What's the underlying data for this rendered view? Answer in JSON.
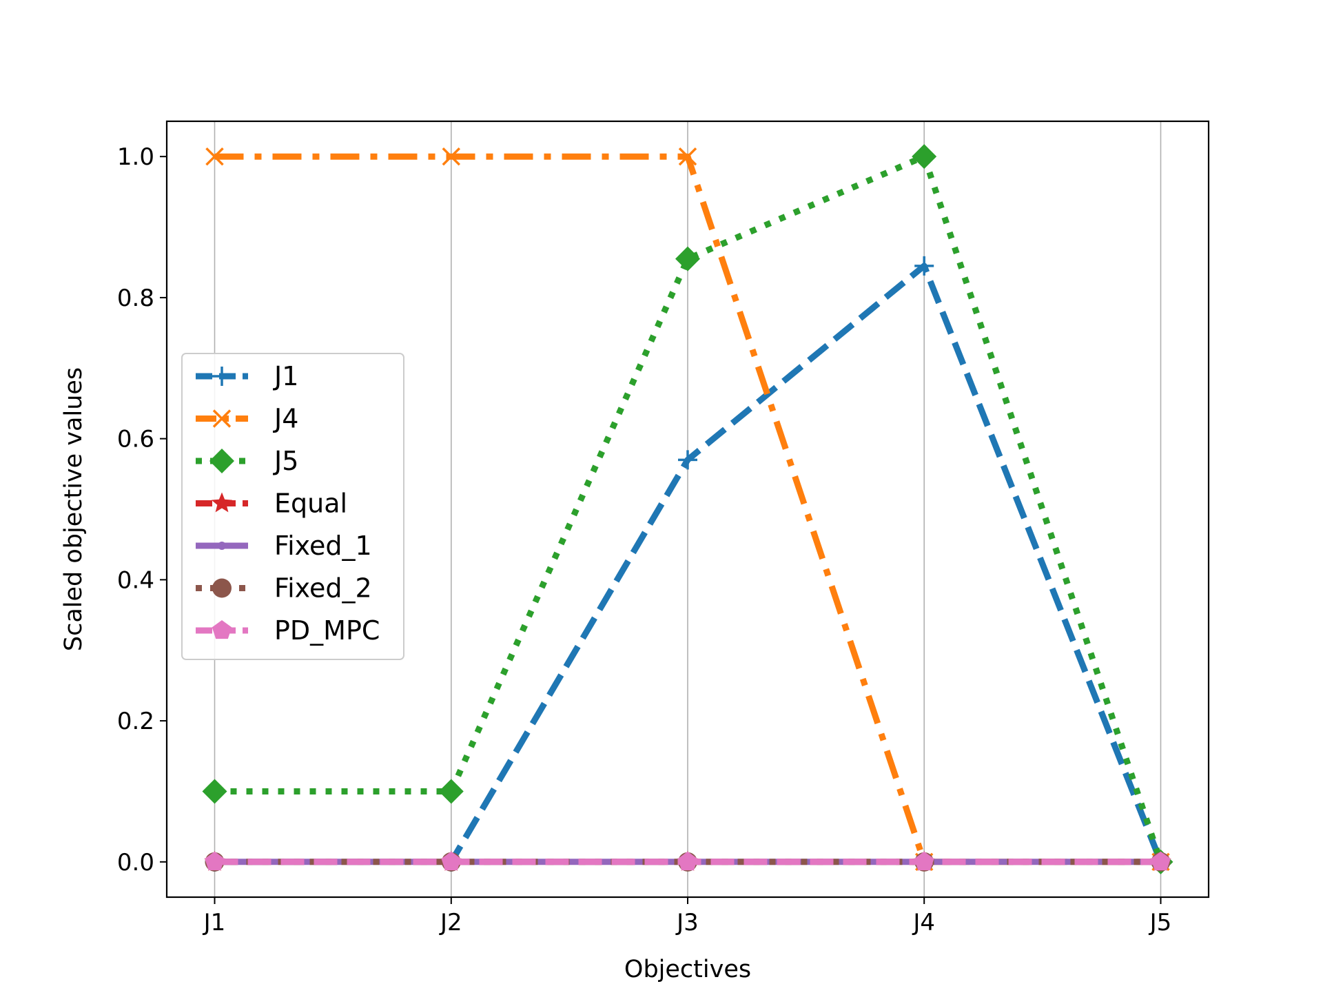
{
  "chart_data": {
    "type": "line",
    "title": "",
    "xlabel": "Objectives",
    "ylabel": "Scaled objective values",
    "categories": [
      "J1",
      "J2",
      "J3",
      "J4",
      "J5"
    ],
    "ylim": [
      -0.05,
      1.05
    ],
    "yticks": [
      "0.0",
      "0.2",
      "0.4",
      "0.6",
      "0.8",
      "1.0"
    ],
    "grid": "vertical",
    "legend_position": "center-left",
    "series": [
      {
        "name": "J1",
        "values": [
          0,
          0,
          0.57,
          0.845,
          0
        ],
        "color": "#1f77b4",
        "linestyle": "dashed",
        "marker": "plus"
      },
      {
        "name": "J4",
        "values": [
          1.0,
          1.0,
          1.0,
          0,
          0
        ],
        "color": "#ff7f0e",
        "linestyle": "dashdot",
        "marker": "x"
      },
      {
        "name": "J5",
        "values": [
          0.1,
          0.1,
          0.855,
          1.0,
          0
        ],
        "color": "#2ca02c",
        "linestyle": "dotted",
        "marker": "diamond"
      },
      {
        "name": "Equal",
        "values": [
          0,
          0,
          0,
          0,
          0
        ],
        "color": "#d62728",
        "linestyle": "dashed",
        "marker": "star"
      },
      {
        "name": "Fixed_1",
        "values": [
          0,
          0,
          0,
          0,
          0
        ],
        "color": "#9467bd",
        "linestyle": "solid",
        "marker": "point"
      },
      {
        "name": "Fixed_2",
        "values": [
          0,
          0,
          0,
          0,
          0
        ],
        "color": "#8c564b",
        "linestyle": "dotted",
        "marker": "circle"
      },
      {
        "name": "PD_MPC",
        "values": [
          0,
          0,
          0,
          0,
          0
        ],
        "color": "#e377c2",
        "linestyle": "dashed",
        "marker": "pentagon"
      }
    ]
  }
}
